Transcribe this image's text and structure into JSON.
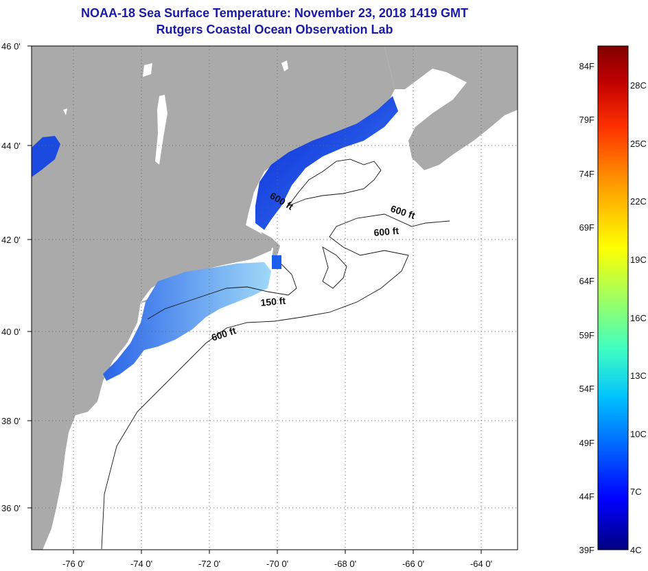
{
  "title": "NOAA-18 Sea Surface Temperature:  November 23, 2018 1419 GMT",
  "subtitle": "Rutgers Coastal Ocean Observation Lab",
  "latitude_labels": [
    "46 0'",
    "44 0'",
    "42 0'",
    "40 0'",
    "38 0'",
    "36 0'"
  ],
  "longitude_labels": [
    "-76 0'",
    "-74 0'",
    "-72 0'",
    "-70 0'",
    "-68 0'",
    "-66 0'",
    "-64 0'"
  ],
  "contour_labels": [
    "600 ft",
    "600 ft",
    "600 ft",
    "150 ft",
    "600 ft"
  ],
  "colorbar": {
    "fahrenheit": [
      "84F",
      "79F",
      "74F",
      "69F",
      "64F",
      "59F",
      "54F",
      "49F",
      "44F",
      "39F"
    ],
    "celsius": [
      "28C",
      "25C",
      "22C",
      "19C",
      "16C",
      "13C",
      "10C",
      "7C",
      "4C"
    ],
    "range_f": [
      39,
      86
    ],
    "colors": [
      "#000080",
      "#0000ff",
      "#0060ff",
      "#00c0ff",
      "#40ffc0",
      "#a0ff60",
      "#ffff00",
      "#ffa000",
      "#ff3000",
      "#c00000",
      "#800000"
    ]
  },
  "colors": {
    "land": "#aaaaaa",
    "ocean": "#ffffff",
    "title": "#1a1aa8"
  }
}
